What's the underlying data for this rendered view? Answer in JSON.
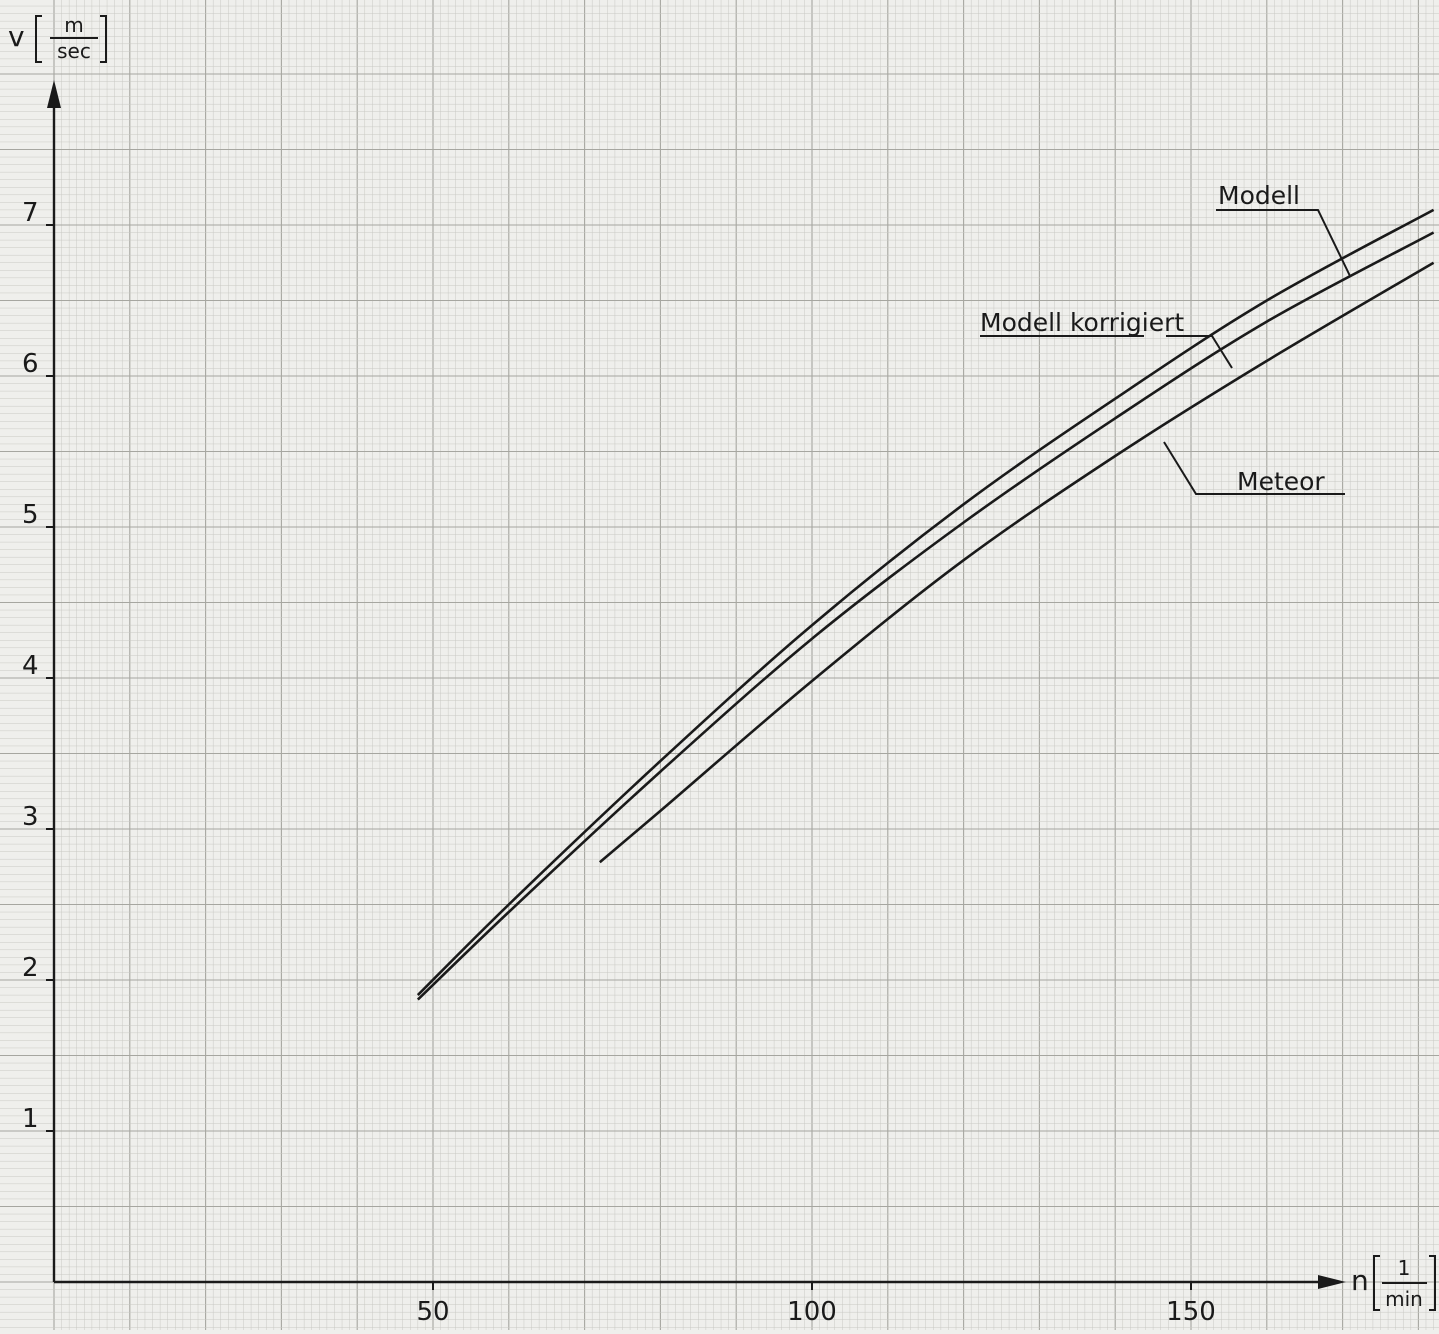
{
  "chart_data": {
    "type": "line",
    "title": "",
    "xlabel": {
      "symbol": "n",
      "unit_numerator": "1",
      "unit_denominator": "min"
    },
    "ylabel": {
      "symbol": "v",
      "unit_numerator": "m",
      "unit_denominator": "sec"
    },
    "xlim": [
      0,
      182
    ],
    "ylim": [
      0,
      8
    ],
    "x_ticks": [
      "50",
      "100",
      "150"
    ],
    "y_ticks": [
      "1",
      "2",
      "3",
      "4",
      "5",
      "6",
      "7"
    ],
    "grid": true,
    "series": [
      {
        "name": "Modell",
        "x": [
          48,
          60,
          80,
          100,
          120,
          140,
          160,
          182
        ],
        "y": [
          1.9,
          2.5,
          3.45,
          4.35,
          5.15,
          5.85,
          6.5,
          7.1
        ]
      },
      {
        "name": "Modell korrigiert",
        "x": [
          48,
          60,
          80,
          100,
          120,
          140,
          160,
          182
        ],
        "y": [
          1.87,
          2.45,
          3.38,
          4.26,
          5.03,
          5.72,
          6.36,
          6.95
        ]
      },
      {
        "name": "Meteor",
        "x": [
          72,
          80,
          100,
          120,
          140,
          160,
          182
        ],
        "y": [
          2.78,
          3.12,
          3.98,
          4.78,
          5.47,
          6.1,
          6.75
        ]
      }
    ]
  },
  "colors": {
    "paper": "#efefec",
    "grid_minor": "#c9c9c4",
    "grid_major": "#a6a6a0",
    "ink": "#1a1a1a"
  }
}
